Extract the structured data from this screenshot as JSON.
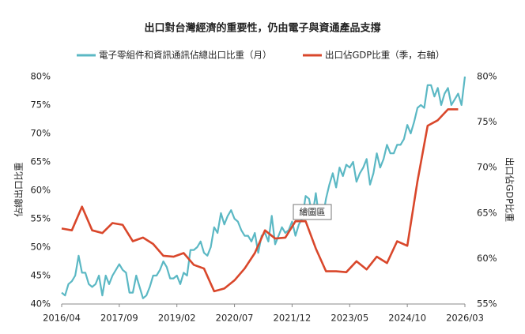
{
  "chart_data": {
    "type": "line",
    "title": "出口對台灣經濟的重要性，仍由電子與資通產品支撐",
    "y_label": "佔總出口比重",
    "y2_label": "出口佔GDP比重",
    "annotation": "繪圖區",
    "xlim": [
      "2016/04",
      "2026/03"
    ],
    "xticks": [
      "2016/04",
      "2017/09",
      "2019/02",
      "2020/07",
      "2021/12",
      "2023/05",
      "2024/10",
      "2026/03"
    ],
    "ylim": [
      40,
      80
    ],
    "yticks": [
      {
        "value": 40,
        "label": "40%"
      },
      {
        "value": 45,
        "label": "45%"
      },
      {
        "value": 50,
        "label": "50%"
      },
      {
        "value": 55,
        "label": "55%"
      },
      {
        "value": 60,
        "label": "60%"
      },
      {
        "value": 65,
        "label": "65%"
      },
      {
        "value": 70,
        "label": "70%"
      },
      {
        "value": 75,
        "label": "75%"
      },
      {
        "value": 80,
        "label": "80%"
      }
    ],
    "y2lim": [
      55,
      80
    ],
    "y2ticks": [
      {
        "value": 55,
        "label": "55%"
      },
      {
        "value": 60,
        "label": "60%"
      },
      {
        "value": 65,
        "label": "65%"
      },
      {
        "value": 70,
        "label": "70%"
      },
      {
        "value": 75,
        "label": "75%"
      },
      {
        "value": 80,
        "label": "80%"
      }
    ],
    "grid": false,
    "series": [
      {
        "name": "電子零組件和資訊通訊佔總出口比重（月）",
        "color": "#5bb8c4",
        "x": [
          "2016/04",
          "2016/05",
          "2016/06",
          "2016/07",
          "2016/08",
          "2016/09",
          "2016/10",
          "2016/11",
          "2016/12",
          "2017/01",
          "2017/02",
          "2017/03",
          "2017/04",
          "2017/05",
          "2017/06",
          "2017/07",
          "2017/08",
          "2017/09",
          "2017/10",
          "2017/11",
          "2017/12",
          "2018/01",
          "2018/02",
          "2018/03",
          "2018/04",
          "2018/05",
          "2018/06",
          "2018/07",
          "2018/08",
          "2018/09",
          "2018/10",
          "2018/11",
          "2018/12",
          "2019/01",
          "2019/02",
          "2019/03",
          "2019/04",
          "2019/05",
          "2019/06",
          "2019/07",
          "2019/08",
          "2019/09",
          "2019/10",
          "2019/11",
          "2019/12",
          "2020/01",
          "2020/02",
          "2020/03",
          "2020/04",
          "2020/05",
          "2020/06",
          "2020/07",
          "2020/08",
          "2020/09",
          "2020/10",
          "2020/11",
          "2020/12",
          "2021/01",
          "2021/02",
          "2021/03",
          "2021/04",
          "2021/05",
          "2021/06",
          "2021/07",
          "2021/08",
          "2021/09",
          "2021/10",
          "2021/11",
          "2021/12",
          "2022/01",
          "2022/02",
          "2022/03",
          "2022/04",
          "2022/05",
          "2022/06",
          "2022/07",
          "2022/08",
          "2022/09",
          "2022/10",
          "2022/11",
          "2022/12",
          "2023/01",
          "2023/02",
          "2023/03",
          "2023/04",
          "2023/05",
          "2023/06",
          "2023/07",
          "2023/08",
          "2023/09",
          "2023/10",
          "2023/11",
          "2023/12",
          "2024/01",
          "2024/02",
          "2024/03",
          "2024/04",
          "2024/05",
          "2024/06",
          "2024/07",
          "2024/08",
          "2024/09",
          "2024/10",
          "2024/11",
          "2024/12",
          "2025/01",
          "2025/02",
          "2025/03",
          "2025/04",
          "2025/05",
          "2025/06",
          "2025/07",
          "2025/08",
          "2025/09",
          "2025/10",
          "2025/11",
          "2025/12",
          "2026/01",
          "2026/02",
          "2026/03"
        ],
        "values": [
          42,
          41.5,
          43.5,
          44,
          45,
          48.5,
          45.5,
          45.5,
          43.5,
          43,
          43.5,
          45,
          41.5,
          45,
          43.5,
          45,
          46,
          47,
          46,
          45.5,
          42,
          42,
          45,
          43,
          41,
          41.5,
          43,
          45,
          45,
          46,
          47.5,
          46.5,
          44.5,
          44.5,
          45,
          43.5,
          45.5,
          45,
          49.5,
          49.5,
          50,
          51,
          49,
          48.5,
          50,
          53.5,
          52.5,
          56,
          54,
          55.5,
          56.5,
          55,
          54.5,
          53,
          52,
          52,
          51,
          52.5,
          49,
          52,
          52.5,
          51,
          55.5,
          50.5,
          52,
          53.5,
          52.5,
          53,
          54.5,
          52,
          54,
          55,
          59,
          58.5,
          55.5,
          59.5,
          55,
          55,
          58.5,
          61,
          63,
          60.5,
          64,
          62.5,
          64.5,
          64,
          65,
          61.5,
          63,
          64,
          65.5,
          61,
          63,
          66.5,
          64,
          65.5,
          68,
          66.5,
          66.5,
          68,
          68,
          69,
          71.5,
          70,
          72,
          74.5,
          75,
          74.5,
          78.5,
          78.5,
          76.5,
          78,
          75,
          77,
          78,
          75,
          76,
          77,
          75,
          80
        ]
      },
      {
        "name": "出口佔GDP比重（季，右軸）",
        "color": "#d9472b",
        "axis": "y2",
        "x": [
          "2016/04",
          "2016/07",
          "2016/10",
          "2017/01",
          "2017/04",
          "2017/07",
          "2017/10",
          "2018/01",
          "2018/04",
          "2018/07",
          "2018/10",
          "2019/01",
          "2019/04",
          "2019/07",
          "2019/10",
          "2020/01",
          "2020/04",
          "2020/07",
          "2020/10",
          "2021/01",
          "2021/04",
          "2021/07",
          "2021/10",
          "2022/01",
          "2022/04",
          "2022/07",
          "2022/10",
          "2023/01",
          "2023/04",
          "2023/07",
          "2023/10",
          "2024/01",
          "2024/04",
          "2024/07",
          "2024/10",
          "2025/01",
          "2025/04",
          "2025/07",
          "2025/10",
          "2026/01"
        ],
        "values": [
          63.3,
          63.1,
          65.7,
          63.1,
          62.8,
          63.9,
          63.7,
          61.9,
          62.3,
          61.6,
          60.3,
          60.2,
          60.6,
          59.3,
          58.9,
          56.4,
          56.7,
          57.6,
          58.9,
          60.6,
          63.1,
          62.2,
          62.3,
          64.1,
          64.1,
          61.1,
          58.6,
          58.6,
          58.5,
          59.7,
          58.8,
          60.2,
          59.5,
          61.9,
          61.4,
          68.5,
          74.6,
          75.2,
          76.4,
          76.4
        ]
      }
    ]
  }
}
